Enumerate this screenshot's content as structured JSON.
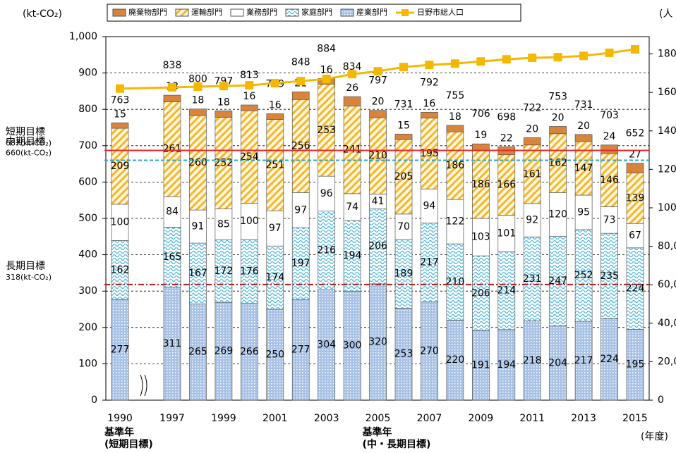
{
  "chart_data": {
    "type": "stacked-bar",
    "y_label": "(kt-CO₂)",
    "y2_label": "(人",
    "x_label": "(年度)",
    "categories": [
      "1990",
      "1997",
      null,
      "1999",
      null,
      "2001",
      null,
      "2003",
      null,
      "2005",
      null,
      "2007",
      null,
      "2009",
      null,
      "2011",
      null,
      "2013",
      null,
      "2015"
    ],
    "series": [
      {
        "name": "廃棄物部門",
        "color": "#d9843c",
        "hatch": "none",
        "values": [
          15,
          18,
          18,
          18,
          16,
          16,
          21,
          16,
          26,
          20,
          15,
          16,
          18,
          19,
          22,
          20,
          20,
          20,
          24,
          27
        ],
        "order": 4
      },
      {
        "name": "運輸部門",
        "color": "#f4b62c",
        "hatch": "diagonal",
        "values": [
          209,
          261,
          260,
          252,
          254,
          251,
          256,
          253,
          241,
          210,
          205,
          195,
          186,
          186,
          166,
          161,
          162,
          147,
          146,
          139
        ],
        "order": 3
      },
      {
        "name": "業務部門",
        "color": "#ffffff",
        "hatch": "none",
        "values": [
          100,
          84,
          91,
          85,
          100,
          97,
          97,
          96,
          74,
          41,
          70,
          94,
          122,
          103,
          101,
          92,
          120,
          95,
          73,
          67
        ],
        "order": 2
      },
      {
        "name": "家庭部門",
        "color": "#4fb8e0",
        "hatch": "wave",
        "values": [
          162,
          165,
          167,
          172,
          176,
          174,
          197,
          216,
          194,
          206,
          189,
          217,
          210,
          206,
          214,
          231,
          247,
          252,
          235,
          224
        ],
        "order": 1
      },
      {
        "name": "産業部門",
        "color": "#a8c2e6",
        "hatch": "dots",
        "values": [
          277,
          311,
          265,
          269,
          266,
          250,
          277,
          304,
          300,
          320,
          253,
          270,
          220,
          191,
          194,
          218,
          204,
          217,
          224,
          195
        ],
        "order": 0
      },
      {
        "name": "日野市総人口",
        "color": "#f5b800",
        "type": "line",
        "axis": "y2",
        "values": [
          162000,
          162600,
          163000,
          163300,
          163700,
          164800,
          165900,
          167000,
          169500,
          171000,
          173200,
          174300,
          175000,
          176100,
          177200,
          178000,
          178300,
          179000,
          180600,
          182400
        ]
      }
    ],
    "totals": [
      763,
      838,
      800,
      797,
      813,
      789,
      848,
      884,
      834,
      797,
      731,
      792,
      755,
      706,
      698,
      722,
      753,
      731,
      703,
      652
    ],
    "ylim": [
      0,
      1000
    ],
    "yticks": [
      0,
      100,
      200,
      300,
      400,
      500,
      600,
      700,
      800,
      900,
      {
        "value": 1000,
        "label": "1,000"
      }
    ],
    "y2lim": [
      0,
      189000
    ],
    "y2ticks": [
      0,
      {
        "value": 20000,
        "label": "20,000"
      },
      {
        "value": 40000,
        "label": "40,000"
      },
      {
        "value": 60000,
        "label": "60,000"
      },
      {
        "value": 80000,
        "label": "80,000"
      },
      {
        "value": 100000,
        "label": "100,000"
      },
      {
        "value": 120000,
        "label": "120,000"
      },
      {
        "value": 140000,
        "label": "140,000"
      },
      {
        "value": 160000,
        "label": "160,000"
      },
      {
        "value": 180000,
        "label": "180,000"
      }
    ],
    "grid": true,
    "targets": [
      {
        "name": "短期目標",
        "label": "687(kt-CO₂)",
        "value": 687,
        "color": "#e8262a",
        "style": "solid"
      },
      {
        "name": "中期目標",
        "label": "660(kt-CO₂)",
        "value": 660,
        "color": "#2aa8c8",
        "style": "dashed"
      },
      {
        "name": "長期目標",
        "label": "318(kt-CO₂)",
        "value": 318,
        "color": "#b01c1c",
        "style": "dashdot"
      }
    ],
    "annotations": [
      {
        "index": 0,
        "lines": [
          "基準年",
          "(短期目標)"
        ]
      },
      {
        "index": 9,
        "lines": [
          "基準年",
          "(中・長期目標)"
        ]
      }
    ]
  }
}
